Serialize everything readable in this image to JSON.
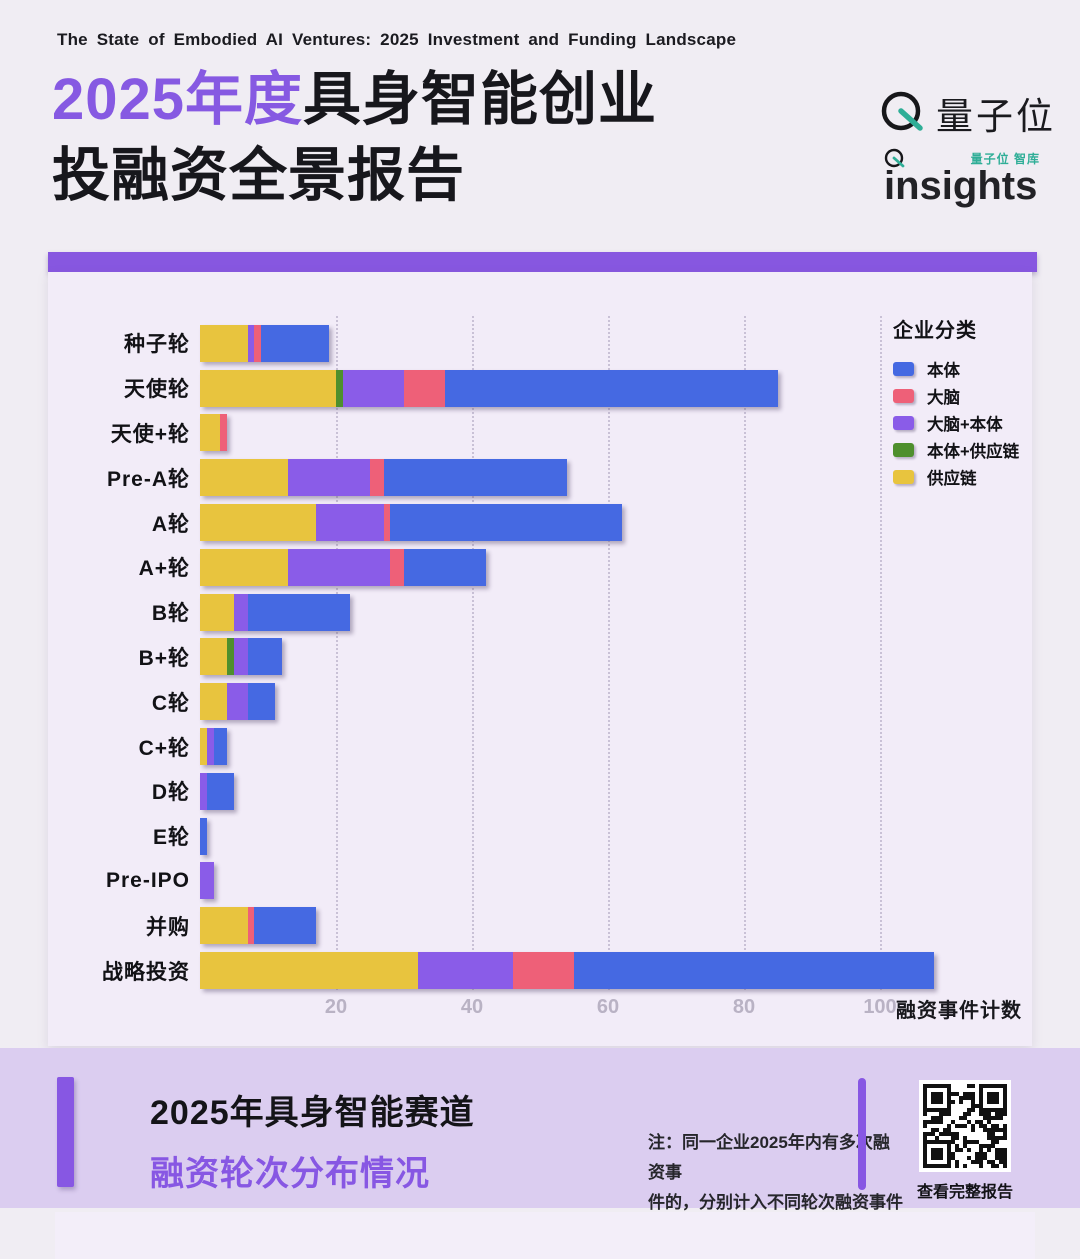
{
  "header": {
    "subtitle_en": "The State of Embodied AI Ventures: 2025 Investment and Funding Landscape",
    "title_highlight": "2025年度",
    "title_rest_line1": "具身智能创业",
    "title_line2": "投融资全景报告",
    "brand_qbit": "量子位",
    "brand_insights_tag": "量子位 智库",
    "brand_insights": "insights"
  },
  "colors": {
    "accent_purple": "#8757e0",
    "teal": "#2fae97",
    "body_blue": "#4569e2",
    "brain_red": "#ee6078",
    "brain_body_purple": "#8a5ce8",
    "body_supply_green": "#4e8f2d",
    "supply_yellow": "#e8c43e"
  },
  "chart_data": {
    "type": "bar",
    "orientation": "horizontal",
    "stacked": true,
    "title": "2025年具身智能赛道融资轮次分布情况",
    "categories": [
      "种子轮",
      "天使轮",
      "天使+轮",
      "Pre-A轮",
      "A轮",
      "A+轮",
      "B轮",
      "B+轮",
      "C轮",
      "C+轮",
      "D轮",
      "E轮",
      "Pre-IPO",
      "并购",
      "战略投资"
    ],
    "series": [
      {
        "name": "本体",
        "color": "#4569e2",
        "values": [
          10,
          49,
          0,
          27,
          34,
          12,
          15,
          5,
          4,
          2,
          4,
          1,
          0,
          9,
          53
        ]
      },
      {
        "name": "大脑",
        "color": "#ee6078",
        "values": [
          1,
          6,
          1,
          2,
          1,
          2,
          0,
          0,
          0,
          0,
          0,
          0,
          0,
          1,
          9
        ]
      },
      {
        "name": "大脑+本体",
        "color": "#8a5ce8",
        "values": [
          1,
          9,
          0,
          12,
          10,
          15,
          2,
          2,
          3,
          1,
          1,
          0,
          2,
          0,
          14
        ]
      },
      {
        "name": "本体+供应链",
        "color": "#4e8f2d",
        "values": [
          0,
          1,
          0,
          0,
          0,
          0,
          0,
          1,
          0,
          0,
          0,
          0,
          0,
          0,
          0
        ]
      },
      {
        "name": "供应链",
        "color": "#e8c43e",
        "values": [
          7,
          20,
          3,
          13,
          17,
          13,
          5,
          4,
          4,
          1,
          0,
          0,
          0,
          7,
          32
        ]
      }
    ],
    "stack_order": [
      "供应链",
      "本体+供应链",
      "大脑+本体",
      "大脑",
      "本体"
    ],
    "totals": [
      19,
      85,
      4,
      54,
      62,
      42,
      22,
      12,
      11,
      4,
      5,
      1,
      2,
      17,
      108
    ],
    "legend_title": "企业分类",
    "legend_position": "top-right",
    "x_ticks": [
      20,
      40,
      60,
      80,
      100
    ],
    "xlim": [
      0,
      122
    ],
    "xlabel": "融资事件计数",
    "grid": "dotted-vertical"
  },
  "footer": {
    "title": "2025年具身智能赛道",
    "subtitle": "融资轮次分布情况",
    "note_line1": "注：同一企业2025年内有多次融资事",
    "note_line2": "件的，分别计入不同轮次融资事件计数",
    "qr_label": "查看完整报告"
  }
}
